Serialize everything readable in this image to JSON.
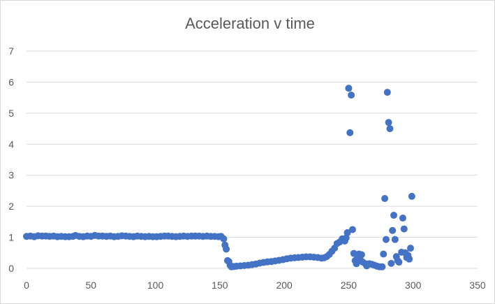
{
  "chart_data": {
    "type": "scatter",
    "title": "Acceleration v time",
    "xlabel": "",
    "ylabel": "",
    "xlim": [
      0,
      350
    ],
    "ylim": [
      0,
      7
    ],
    "x_ticks": [
      0,
      50,
      100,
      150,
      200,
      250,
      300,
      350
    ],
    "y_ticks": [
      0,
      1,
      2,
      3,
      4,
      5,
      6,
      7
    ],
    "grid": true,
    "legend": "none",
    "marker_color": "#4472C4",
    "grid_color": "#d9d9d9",
    "series": [
      {
        "points": [
          [
            0,
            1.03
          ],
          [
            3,
            1.04
          ],
          [
            6,
            1.02
          ],
          [
            9,
            1.05
          ],
          [
            12,
            1.04
          ],
          [
            15,
            1.04
          ],
          [
            18,
            1.03
          ],
          [
            21,
            1.04
          ],
          [
            24,
            1.02
          ],
          [
            27,
            1.03
          ],
          [
            30,
            1.02
          ],
          [
            33,
            1.02
          ],
          [
            36,
            1.03
          ],
          [
            38,
            1.06
          ],
          [
            41,
            1.03
          ],
          [
            44,
            1.02
          ],
          [
            47,
            1.04
          ],
          [
            50,
            1.03
          ],
          [
            53,
            1.06
          ],
          [
            56,
            1.04
          ],
          [
            59,
            1.04
          ],
          [
            62,
            1.03
          ],
          [
            65,
            1.04
          ],
          [
            68,
            1.02
          ],
          [
            71,
            1.03
          ],
          [
            74,
            1.05
          ],
          [
            77,
            1.04
          ],
          [
            80,
            1.03
          ],
          [
            83,
            1.02
          ],
          [
            86,
            1.04
          ],
          [
            89,
            1.03
          ],
          [
            92,
            1.02
          ],
          [
            95,
            1.03
          ],
          [
            98,
            1.02
          ],
          [
            101,
            1.02
          ],
          [
            104,
            1.03
          ],
          [
            107,
            1.04
          ],
          [
            110,
            1.04
          ],
          [
            113,
            1.03
          ],
          [
            116,
            1.02
          ],
          [
            119,
            1.03
          ],
          [
            122,
            1.04
          ],
          [
            125,
            1.03
          ],
          [
            128,
            1.04
          ],
          [
            131,
            1.04
          ],
          [
            134,
            1.04
          ],
          [
            137,
            1.03
          ],
          [
            140,
            1.04
          ],
          [
            143,
            1.03
          ],
          [
            146,
            1.03
          ],
          [
            149,
            1.02
          ],
          [
            151,
            1.03
          ],
          [
            153,
            0.95
          ],
          [
            154,
            0.75
          ],
          [
            155,
            0.62
          ],
          [
            156,
            0.25
          ],
          [
            157,
            0.22
          ],
          [
            158,
            0.1
          ],
          [
            159,
            0.05
          ],
          [
            161,
            0.06
          ],
          [
            163,
            0.07
          ],
          [
            166,
            0.08
          ],
          [
            169,
            0.09
          ],
          [
            172,
            0.1
          ],
          [
            175,
            0.12
          ],
          [
            178,
            0.14
          ],
          [
            181,
            0.17
          ],
          [
            184,
            0.19
          ],
          [
            187,
            0.21
          ],
          [
            190,
            0.22
          ],
          [
            193,
            0.24
          ],
          [
            196,
            0.26
          ],
          [
            199,
            0.28
          ],
          [
            202,
            0.31
          ],
          [
            205,
            0.33
          ],
          [
            208,
            0.34
          ],
          [
            211,
            0.35
          ],
          [
            214,
            0.36
          ],
          [
            217,
            0.37
          ],
          [
            220,
            0.37
          ],
          [
            223,
            0.36
          ],
          [
            226,
            0.35
          ],
          [
            229,
            0.33
          ],
          [
            231,
            0.34
          ],
          [
            233,
            0.38
          ],
          [
            235,
            0.45
          ],
          [
            237,
            0.55
          ],
          [
            239,
            0.65
          ],
          [
            241,
            0.8
          ],
          [
            243,
            0.85
          ],
          [
            245,
            0.95
          ],
          [
            247,
            0.88
          ],
          [
            248,
            0.98
          ],
          [
            249,
            1.15
          ],
          [
            250,
            5.8
          ],
          [
            251,
            4.37
          ],
          [
            252,
            5.58
          ],
          [
            253,
            1.25
          ],
          [
            254,
            0.48
          ],
          [
            255,
            0.25
          ],
          [
            256,
            0.15
          ],
          [
            257,
            0.38
          ],
          [
            258,
            0.46
          ],
          [
            259,
            0.28
          ],
          [
            260,
            0.44
          ],
          [
            261,
            0.2
          ],
          [
            263,
            0.15
          ],
          [
            264,
            0.08
          ],
          [
            266,
            0.15
          ],
          [
            268,
            0.13
          ],
          [
            270,
            0.1
          ],
          [
            272,
            0.07
          ],
          [
            274,
            0.05
          ],
          [
            276,
            0.05
          ],
          [
            277,
            0.46
          ],
          [
            278,
            2.25
          ],
          [
            279,
            0.93
          ],
          [
            280,
            5.67
          ],
          [
            281,
            4.7
          ],
          [
            282,
            4.5
          ],
          [
            283,
            0.16
          ],
          [
            284,
            1.22
          ],
          [
            285,
            1.71
          ],
          [
            286,
            0.93
          ],
          [
            287,
            0.38
          ],
          [
            288,
            0.25
          ],
          [
            289,
            0.2
          ],
          [
            291,
            0.52
          ],
          [
            292,
            1.62
          ],
          [
            293,
            1.27
          ],
          [
            294,
            0.5
          ],
          [
            295,
            0.35
          ],
          [
            296,
            0.42
          ],
          [
            297,
            0.3
          ],
          [
            298,
            0.65
          ],
          [
            299,
            2.32
          ]
        ]
      }
    ]
  }
}
